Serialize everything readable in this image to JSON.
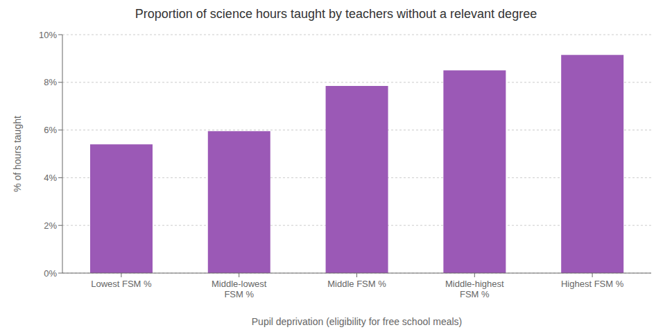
{
  "chart_data": {
    "type": "bar",
    "title": "Proportion of science hours taught by teachers without a relevant degree",
    "categories": [
      "Lowest FSM %",
      "Middle-lowest\nFSM %",
      "Middle FSM %",
      "Middle-highest\nFSM %",
      "Highest FSM %"
    ],
    "values": [
      5.4,
      5.95,
      7.85,
      8.5,
      9.15
    ],
    "color": "#9b59b6",
    "xlabel": "Pupil deprivation (eligibility for free school meals)",
    "ylabel": "% of hours taught",
    "ylim": [
      0,
      10
    ],
    "yticks": [
      {
        "value": 0,
        "label": "0%"
      },
      {
        "value": 2,
        "label": "2%"
      },
      {
        "value": 4,
        "label": "4%"
      },
      {
        "value": 6,
        "label": "6%"
      },
      {
        "value": 8,
        "label": "8%"
      },
      {
        "value": 10,
        "label": "10%"
      }
    ],
    "grid": true
  }
}
